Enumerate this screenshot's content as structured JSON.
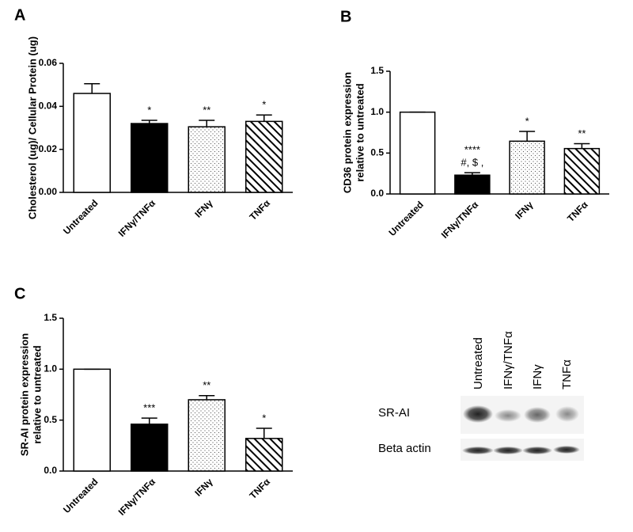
{
  "chart_data": [
    {
      "type": "bar",
      "panel": "A",
      "ylabel": [
        "Cholesterol (ug)/ Cellular Protein (ug)"
      ],
      "categories": [
        "Untreated",
        "IFNγ/TNFα",
        "IFNγ",
        "TNFα"
      ],
      "values": [
        0.046,
        0.032,
        0.0305,
        0.033
      ],
      "errors": [
        0.0045,
        0.0015,
        0.003,
        0.003
      ],
      "annotations": [
        null,
        [
          "*"
        ],
        [
          "**"
        ],
        [
          "*"
        ]
      ],
      "fills": [
        "white",
        "black",
        "dots",
        "hatch"
      ],
      "ylim": [
        0,
        0.06
      ],
      "yticks": [
        {
          "value": 0,
          "label": "0.00"
        },
        {
          "value": 0.02,
          "label": "0.02"
        },
        {
          "value": 0.04,
          "label": "0.04"
        },
        {
          "value": 0.06,
          "label": "0.06"
        }
      ]
    },
    {
      "type": "bar",
      "panel": "B",
      "ylabel": [
        "CD36 protein expression",
        "relative to untreated"
      ],
      "categories": [
        "Untreated",
        "IFNγ/TNFα",
        "IFNγ",
        "TNFα"
      ],
      "values": [
        1.0,
        0.23,
        0.645,
        0.555
      ],
      "errors": [
        0,
        0.03,
        0.12,
        0.06
      ],
      "annotations": [
        null,
        [
          "****",
          "#, $ ,"
        ],
        [
          "*"
        ],
        [
          "**"
        ]
      ],
      "fills": [
        "white",
        "black",
        "dots",
        "hatch"
      ],
      "ylim": [
        0,
        1.5
      ],
      "yticks": [
        {
          "value": 0,
          "label": "0.0"
        },
        {
          "value": 0.5,
          "label": "0.5"
        },
        {
          "value": 1,
          "label": "1.0"
        },
        {
          "value": 1.5,
          "label": "1.5"
        }
      ]
    },
    {
      "type": "bar",
      "panel": "C",
      "ylabel": [
        "SR-AI protein expression",
        "relative to untreated"
      ],
      "categories": [
        "Untreated",
        "IFNγ/TNFα",
        "IFNγ",
        "TNFα"
      ],
      "values": [
        1.0,
        0.46,
        0.7,
        0.32
      ],
      "errors": [
        0,
        0.06,
        0.04,
        0.1
      ],
      "annotations": [
        null,
        [
          "***"
        ],
        [
          "**"
        ],
        [
          "*"
        ]
      ],
      "fills": [
        "white",
        "black",
        "dots",
        "hatch"
      ],
      "ylim": [
        0,
        1.5
      ],
      "yticks": [
        {
          "value": 0,
          "label": "0.0"
        },
        {
          "value": 0.5,
          "label": "0.5"
        },
        {
          "value": 1,
          "label": "1.0"
        },
        {
          "value": 1.5,
          "label": "1.5"
        }
      ]
    }
  ],
  "blot": {
    "lanes": [
      "Untreated",
      "IFNγ/TNFα",
      "IFNγ",
      "TNFα"
    ],
    "rows": [
      "SR-AI",
      "Beta actin"
    ]
  }
}
